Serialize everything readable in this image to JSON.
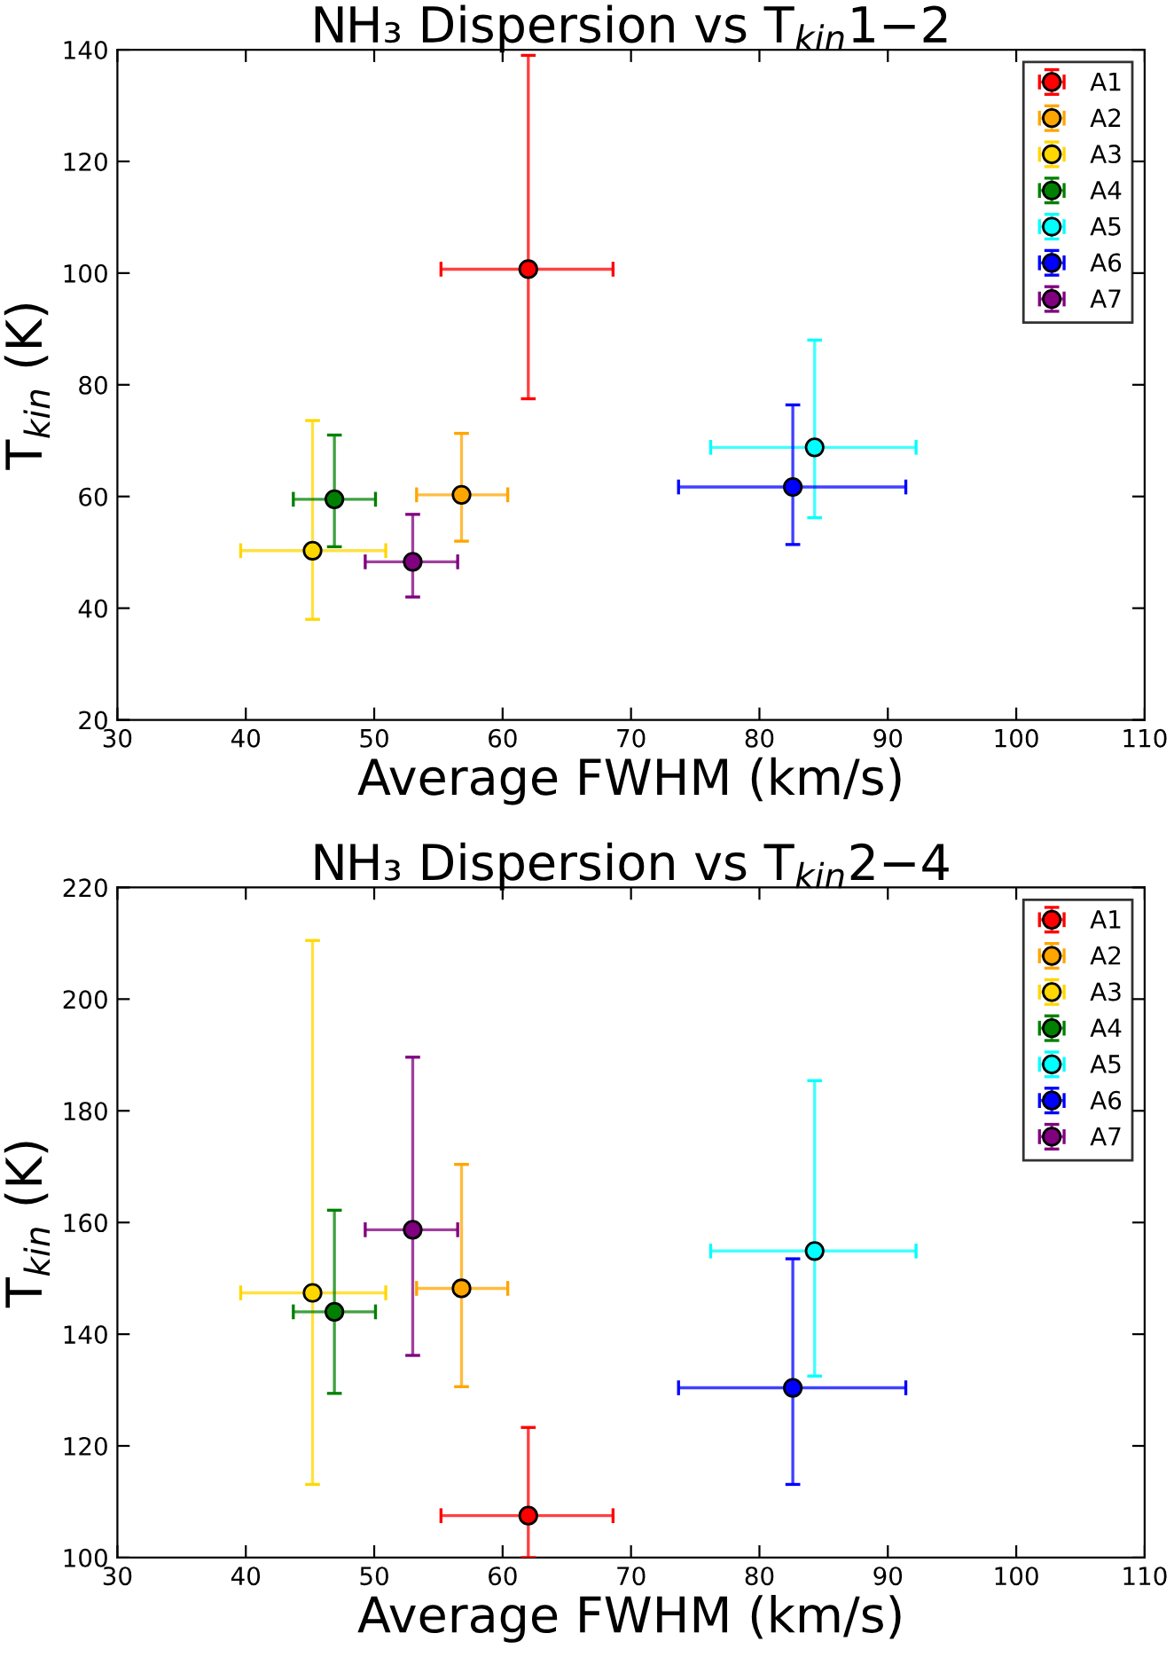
{
  "chart_data": [
    {
      "type": "scatter",
      "title": "NH₃ Dispersion vs T$_{kin}$1−2",
      "xlabel": "Average FWHM (km/s)",
      "ylabel": "T$_{kin}$ (K)",
      "xlim": [
        30,
        110
      ],
      "xticks": [
        30,
        40,
        50,
        60,
        70,
        80,
        90,
        100,
        110
      ],
      "ylim": [
        20,
        140
      ],
      "yticks": [
        20,
        40,
        60,
        80,
        100,
        120,
        140
      ],
      "grid": false,
      "legend": "top right",
      "marker": "circle",
      "series": [
        {
          "name": "A1",
          "color": "#ff0000",
          "x": [
            62.0
          ],
          "values": [
            100.7
          ],
          "errors": [
            [
              77.5,
              139
            ]
          ],
          "xerrors": [
            [
              55.2,
              68.6
            ]
          ]
        },
        {
          "name": "A2",
          "color": "#ffa500",
          "x": [
            56.8
          ],
          "values": [
            60.3
          ],
          "errors": [
            [
              52,
              71.3
            ]
          ],
          "xerrors": [
            [
              53.3,
              60.4
            ]
          ]
        },
        {
          "name": "A3",
          "color": "#ffd700",
          "x": [
            45.2
          ],
          "values": [
            50.3
          ],
          "errors": [
            [
              38,
              73.6
            ]
          ],
          "xerrors": [
            [
              39.6,
              50.9
            ]
          ]
        },
        {
          "name": "A4",
          "color": "#008000",
          "x": [
            46.9
          ],
          "values": [
            59.5
          ],
          "errors": [
            [
              51,
              71
            ]
          ],
          "xerrors": [
            [
              43.7,
              50.1
            ]
          ]
        },
        {
          "name": "A5",
          "color": "#00ffff",
          "x": [
            84.3
          ],
          "values": [
            68.8
          ],
          "errors": [
            [
              56.2,
              88
            ]
          ],
          "xerrors": [
            [
              76.2,
              92.2
            ]
          ]
        },
        {
          "name": "A6",
          "color": "#0000ff",
          "x": [
            82.6
          ],
          "values": [
            61.7
          ],
          "errors": [
            [
              51.4,
              76.4
            ]
          ],
          "xerrors": [
            [
              73.7,
              91.4
            ]
          ]
        },
        {
          "name": "A7",
          "color": "#800080",
          "x": [
            53.0
          ],
          "values": [
            48.3
          ],
          "errors": [
            [
              42,
              56.8
            ]
          ],
          "xerrors": [
            [
              49.3,
              56.5
            ]
          ]
        }
      ]
    },
    {
      "type": "scatter",
      "title": "NH₃ Dispersion vs T$_{kin}$2−4",
      "xlabel": "Average FWHM (km/s)",
      "ylabel": "T$_{kin}$ (K)",
      "xlim": [
        30,
        110
      ],
      "xticks": [
        30,
        40,
        50,
        60,
        70,
        80,
        90,
        100,
        110
      ],
      "ylim": [
        100,
        220
      ],
      "yticks": [
        100,
        120,
        140,
        160,
        180,
        200,
        220
      ],
      "grid": false,
      "legend": "top right",
      "marker": "circle",
      "series": [
        {
          "name": "A1",
          "color": "#ff0000",
          "x": [
            62.0
          ],
          "values": [
            107.5
          ],
          "errors": [
            [
              100,
              123.3
            ]
          ],
          "xerrors": [
            [
              55.2,
              68.6
            ]
          ]
        },
        {
          "name": "A2",
          "color": "#ffa500",
          "x": [
            56.8
          ],
          "values": [
            148.2
          ],
          "errors": [
            [
              130.6,
              170.4
            ]
          ],
          "xerrors": [
            [
              53.3,
              60.4
            ]
          ]
        },
        {
          "name": "A3",
          "color": "#ffd700",
          "x": [
            45.2
          ],
          "values": [
            147.4
          ],
          "errors": [
            [
              113.1,
              210.5
            ]
          ],
          "xerrors": [
            [
              39.6,
              50.9
            ]
          ]
        },
        {
          "name": "A4",
          "color": "#008000",
          "x": [
            46.9
          ],
          "values": [
            144
          ],
          "errors": [
            [
              129.4,
              162.2
            ]
          ],
          "xerrors": [
            [
              43.7,
              50.1
            ]
          ]
        },
        {
          "name": "A5",
          "color": "#00ffff",
          "x": [
            84.3
          ],
          "values": [
            154.9
          ],
          "errors": [
            [
              132.5,
              185.4
            ]
          ],
          "xerrors": [
            [
              76.2,
              92.2
            ]
          ]
        },
        {
          "name": "A6",
          "color": "#0000ff",
          "x": [
            82.6
          ],
          "values": [
            130.4
          ],
          "errors": [
            [
              113.1,
              153.5
            ]
          ],
          "xerrors": [
            [
              73.7,
              91.4
            ]
          ]
        },
        {
          "name": "A7",
          "color": "#800080",
          "x": [
            53.0
          ],
          "values": [
            158.7
          ],
          "errors": [
            [
              136.2,
              189.6
            ]
          ],
          "xerrors": [
            [
              49.3,
              56.5
            ]
          ]
        }
      ]
    }
  ]
}
